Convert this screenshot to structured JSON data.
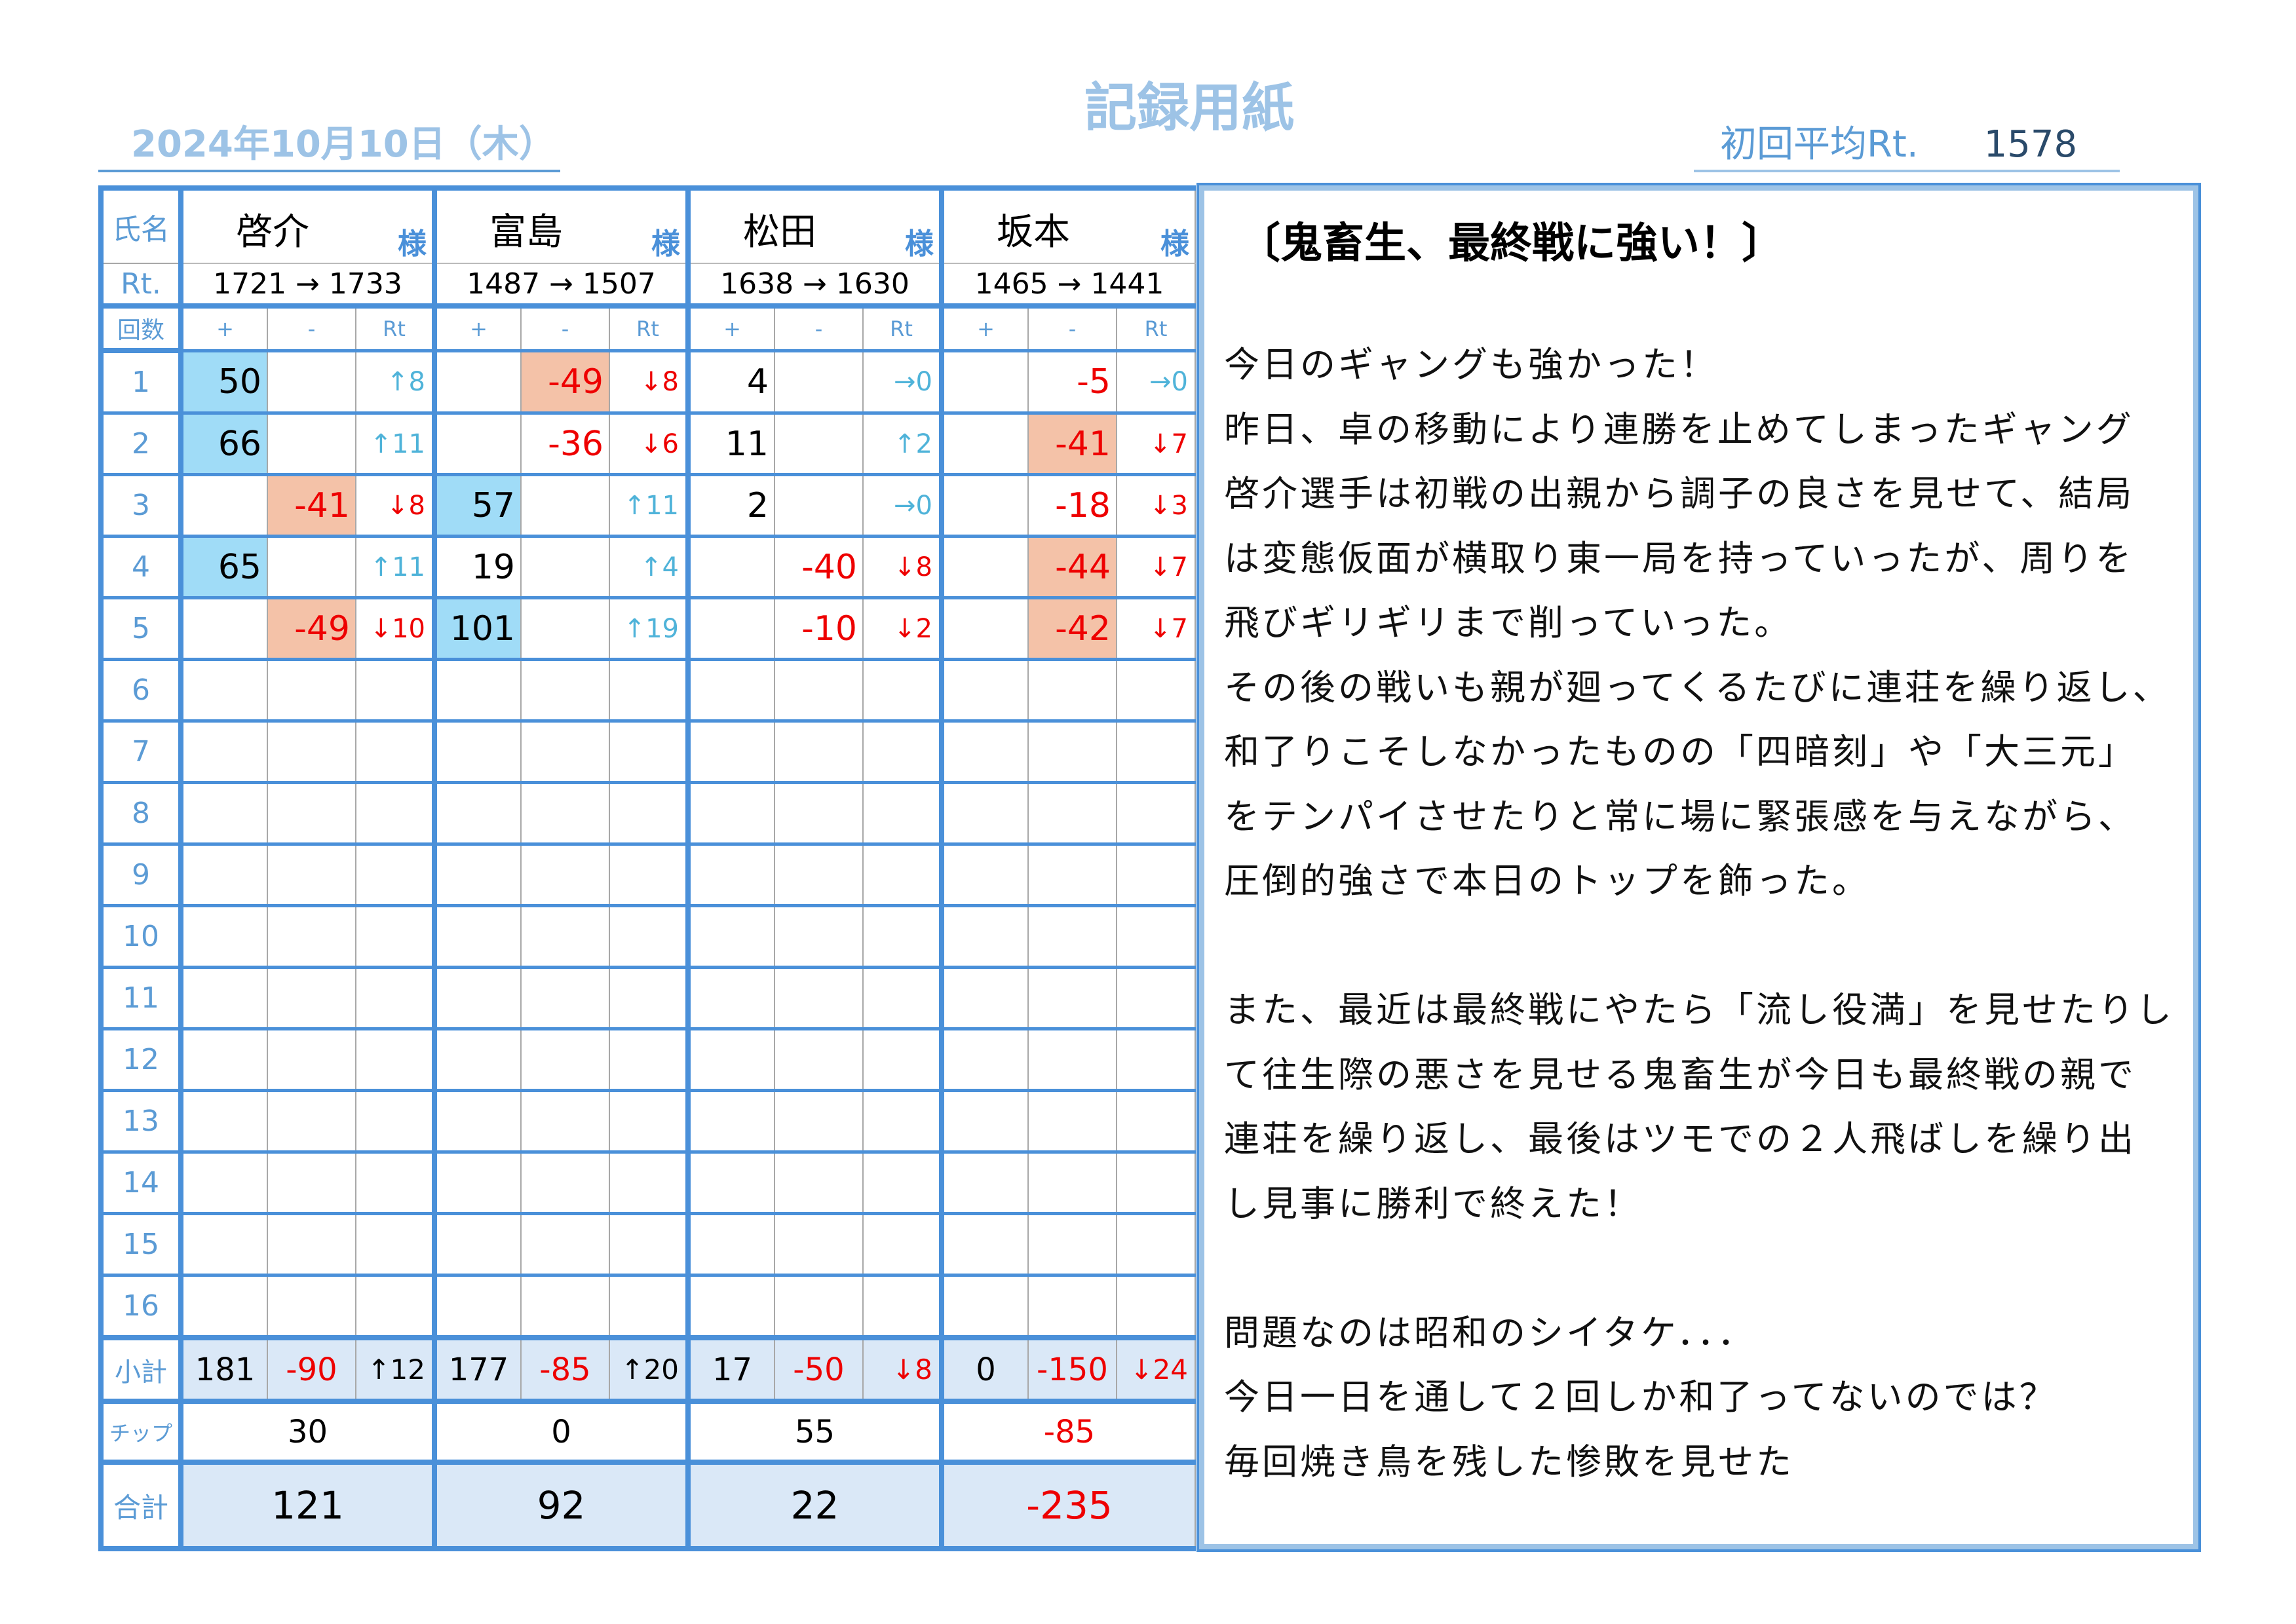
{
  "title": "記録用紙",
  "date": "2024年10月10日（木）",
  "initial_avg": {
    "label": "初回平均Rt.",
    "value": "1578"
  },
  "labels": {
    "name": "氏名",
    "rt": "Rt.",
    "round": "回数",
    "plus": "+",
    "minus": "-",
    "rtcol": "Rt",
    "subtotal": "小計",
    "chip": "チップ",
    "total": "合計",
    "honorific": "様"
  },
  "rounds": [
    "1",
    "2",
    "3",
    "4",
    "5",
    "6",
    "7",
    "8",
    "9",
    "10",
    "11",
    "12",
    "13",
    "14",
    "15",
    "16"
  ],
  "players": [
    {
      "name": "啓介",
      "rt": "1721 → 1733",
      "games": [
        {
          "plus": "50",
          "minus": "",
          "rt": "↑8",
          "dir": "up",
          "hl": "plus"
        },
        {
          "plus": "66",
          "minus": "",
          "rt": "↑11",
          "dir": "up",
          "hl": "plus"
        },
        {
          "plus": "",
          "minus": "-41",
          "rt": "↓8",
          "dir": "down",
          "hl": "minus"
        },
        {
          "plus": "65",
          "minus": "",
          "rt": "↑11",
          "dir": "up",
          "hl": "plus"
        },
        {
          "plus": "",
          "minus": "-49",
          "rt": "↓10",
          "dir": "down",
          "hl": "minus"
        }
      ],
      "subtotal": {
        "plus": "181",
        "minus": "-90",
        "rt": "↑12",
        "dir": "up"
      },
      "chip": "30",
      "total": "121"
    },
    {
      "name": "富島",
      "rt": "1487 → 1507",
      "games": [
        {
          "plus": "",
          "minus": "-49",
          "rt": "↓8",
          "dir": "down",
          "hl": "minus"
        },
        {
          "plus": "",
          "minus": "-36",
          "rt": "↓6",
          "dir": "down",
          "hl": ""
        },
        {
          "plus": "57",
          "minus": "",
          "rt": "↑11",
          "dir": "up",
          "hl": "plus"
        },
        {
          "plus": "19",
          "minus": "",
          "rt": "↑4",
          "dir": "up",
          "hl": ""
        },
        {
          "plus": "101",
          "minus": "",
          "rt": "↑19",
          "dir": "up",
          "hl": "plus"
        }
      ],
      "subtotal": {
        "plus": "177",
        "minus": "-85",
        "rt": "↑20",
        "dir": "up"
      },
      "chip": "0",
      "total": "92"
    },
    {
      "name": "松田",
      "rt": "1638 → 1630",
      "games": [
        {
          "plus": "4",
          "minus": "",
          "rt": "→0",
          "dir": "flat",
          "hl": ""
        },
        {
          "plus": "11",
          "minus": "",
          "rt": "↑2",
          "dir": "up",
          "hl": ""
        },
        {
          "plus": "2",
          "minus": "",
          "rt": "→0",
          "dir": "flat",
          "hl": ""
        },
        {
          "plus": "",
          "minus": "-40",
          "rt": "↓8",
          "dir": "down",
          "hl": ""
        },
        {
          "plus": "",
          "minus": "-10",
          "rt": "↓2",
          "dir": "down",
          "hl": ""
        }
      ],
      "subtotal": {
        "plus": "17",
        "minus": "-50",
        "rt": "↓8",
        "dir": "down"
      },
      "chip": "55",
      "total": "22"
    },
    {
      "name": "坂本",
      "rt": "1465 → 1441",
      "games": [
        {
          "plus": "",
          "minus": "-5",
          "rt": "→0",
          "dir": "flat",
          "hl": ""
        },
        {
          "plus": "",
          "minus": "-41",
          "rt": "↓7",
          "dir": "down",
          "hl": "minus"
        },
        {
          "plus": "",
          "minus": "-18",
          "rt": "↓3",
          "dir": "down",
          "hl": ""
        },
        {
          "plus": "",
          "minus": "-44",
          "rt": "↓7",
          "dir": "down",
          "hl": "minus"
        },
        {
          "plus": "",
          "minus": "-42",
          "rt": "↓7",
          "dir": "down",
          "hl": "minus"
        }
      ],
      "subtotal": {
        "plus": "0",
        "minus": "-150",
        "rt": "↓24",
        "dir": "down"
      },
      "chip": "-85",
      "total": "-235"
    }
  ],
  "memo": {
    "title": "〔鬼畜生、最終戦に強い！〕",
    "lines": [
      "今日のギャングも強かった！",
      "昨日、卓の移動により連勝を止めてしまったギャング",
      "啓介選手は初戦の出親から調子の良さを見せて、結局",
      "は変態仮面が横取り東一局を持っていったが、周りを",
      "飛びギリギリまで削っていった。",
      "その後の戦いも親が廻ってくるたびに連荘を繰り返し、",
      "和了りこそしなかったものの「四暗刻」や「大三元」",
      "をテンパイさせたりと常に場に緊張感を与えながら、",
      "圧倒的強さで本日のトップを飾った。",
      "",
      "また、最近は最終戦にやたら「流し役満」を見せたりし",
      "て往生際の悪さを見せる鬼畜生が今日も最終戦の親で",
      "連荘を繰り返し、最後はツモでの２人飛ばしを繰り出",
      "し見事に勝利で終えた！",
      "",
      "問題なのは昭和のシイタケ．．．",
      "今日一日を通して２回しか和了ってないのでは？",
      "毎回焼き鳥を残した惨敗を見せた"
    ]
  },
  "colors": {
    "border": "#4a90d9",
    "label": "#5b9bd5",
    "win_cell": "#a0dcf7",
    "loss_cell": "#f4c2a8",
    "total_bg": "#dae8f7",
    "negative": "#e00000",
    "rating_up": "#4fb3d9"
  }
}
